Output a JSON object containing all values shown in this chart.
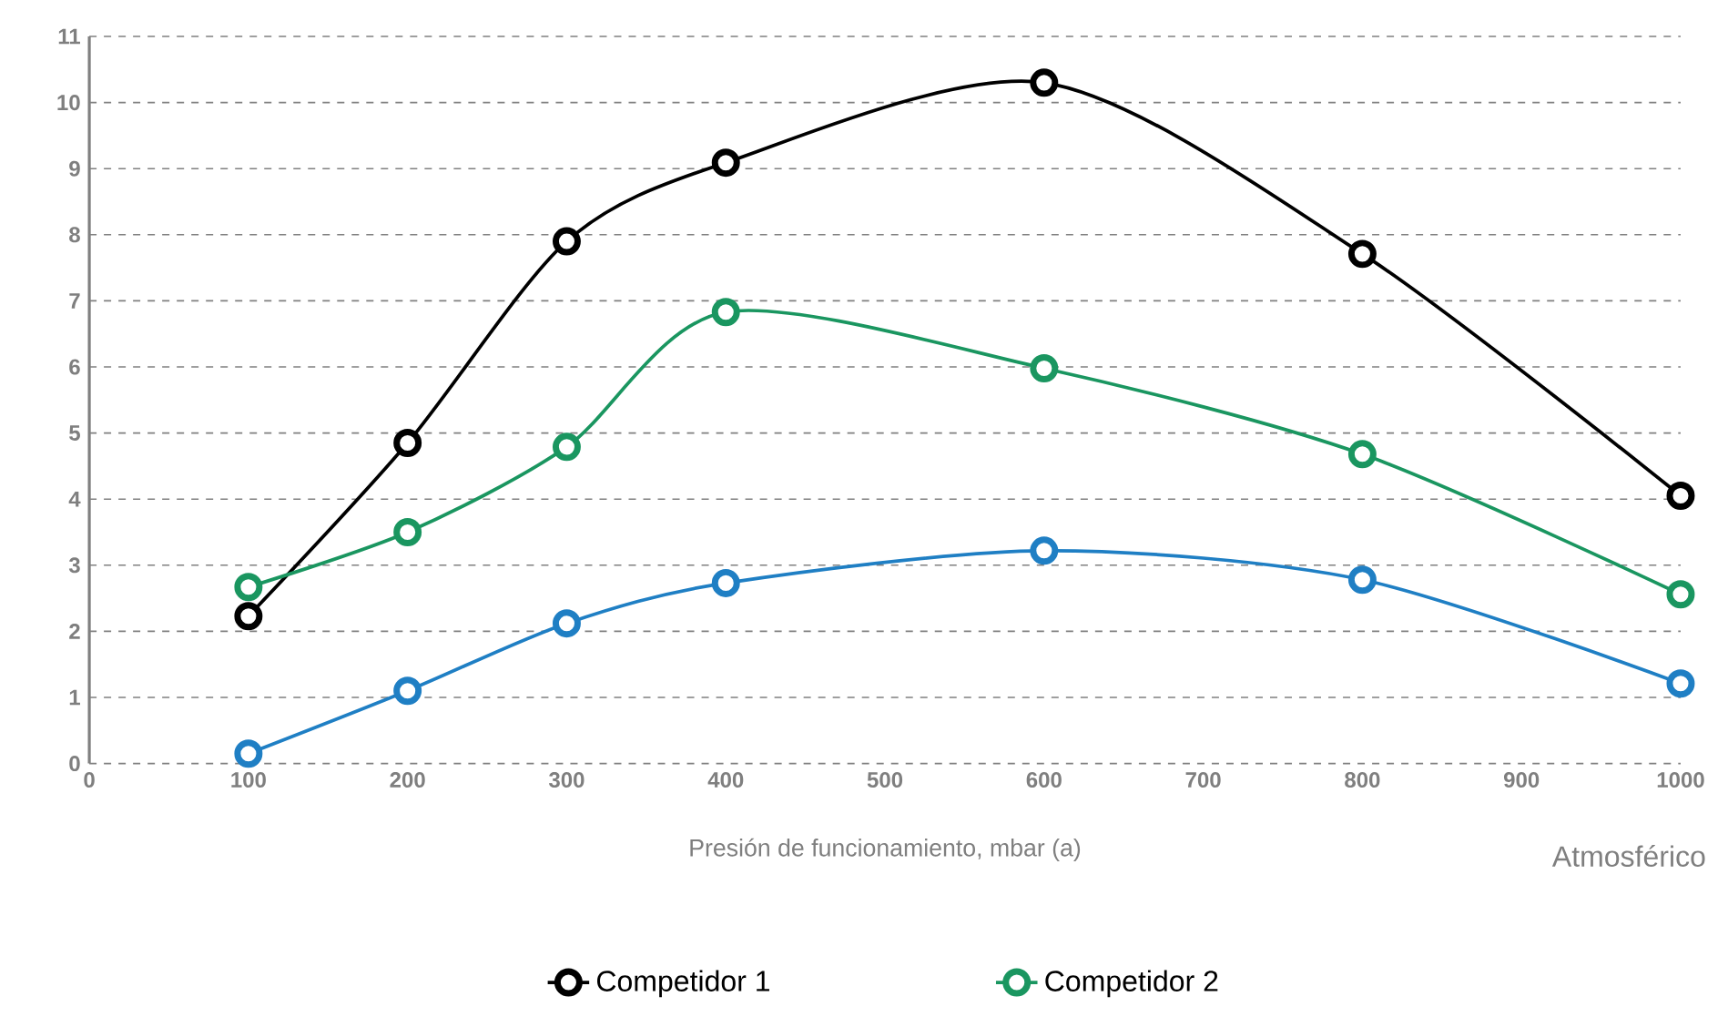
{
  "chart_data": {
    "type": "line",
    "xlabel": "Presión de funcionamiento, mbar (a)",
    "annotations": [
      "Atmosférico"
    ],
    "xlim": [
      0,
      1000
    ],
    "ylim": [
      0,
      11
    ],
    "xticks": [
      0,
      100,
      200,
      300,
      400,
      500,
      600,
      700,
      800,
      900,
      1000
    ],
    "yticks": [
      0,
      1,
      2,
      3,
      4,
      5,
      6,
      7,
      8,
      9,
      10,
      11
    ],
    "grid": "y",
    "legend": "bottom",
    "marker": "circle",
    "line_style": "solid",
    "x": [
      100,
      200,
      300,
      400,
      600,
      800,
      1000
    ],
    "series": [
      {
        "color": "#1f7fc4",
        "values": [
          0.15,
          1.1,
          2.12,
          2.73,
          3.22,
          2.78,
          1.21
        ]
      },
      {
        "name": "Competidor 1",
        "color": "#000000",
        "values": [
          2.23,
          4.85,
          7.9,
          9.09,
          10.3,
          7.71,
          4.05
        ]
      },
      {
        "name": "Competidor 2",
        "color": "#1a9660",
        "values": [
          2.67,
          3.5,
          4.79,
          6.83,
          5.98,
          4.68,
          2.56
        ]
      }
    ]
  }
}
